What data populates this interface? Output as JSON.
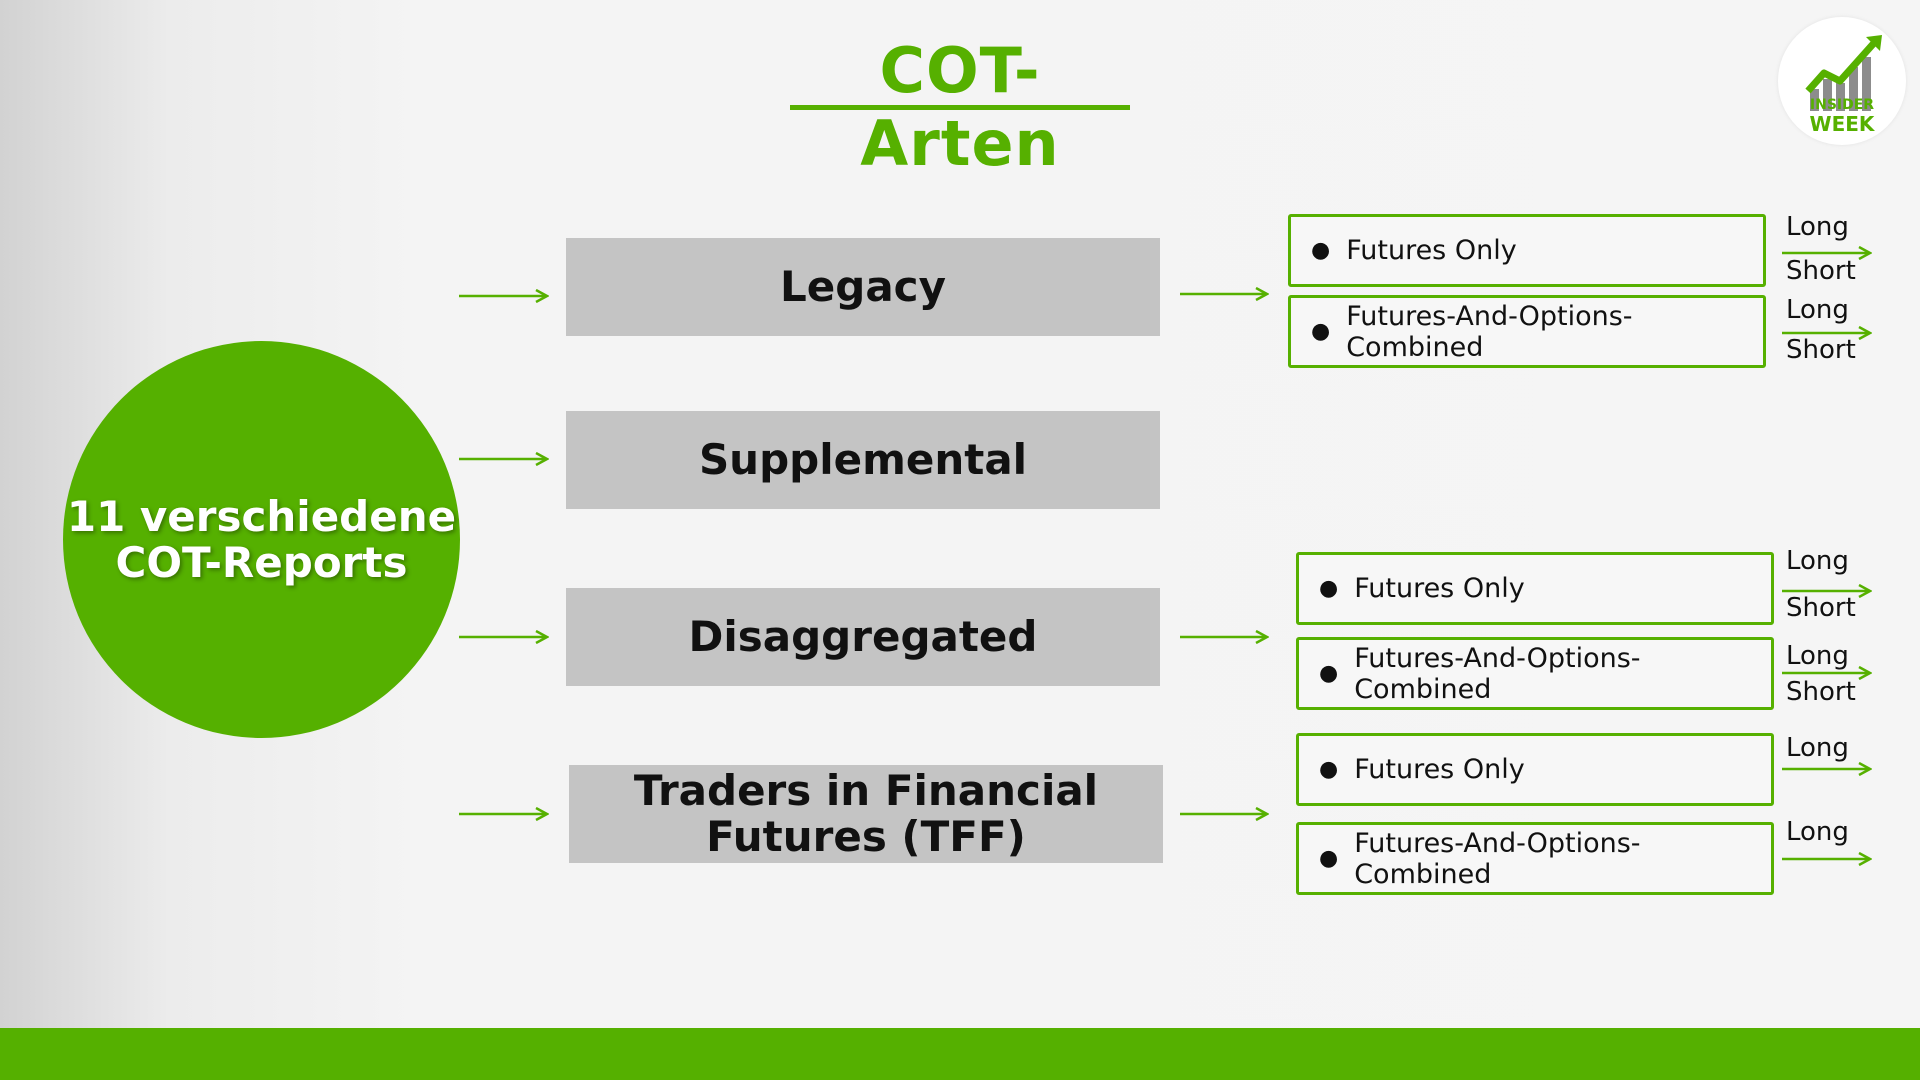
{
  "title": "COT-Arten",
  "logo": {
    "line1": "INSIDER",
    "line2": "WEEK",
    "icon": "rising-chart-icon"
  },
  "center": {
    "line1": "11 verschiedene",
    "line2": "COT-Reports"
  },
  "reports": [
    {
      "label": "Legacy"
    },
    {
      "label": "Supplemental"
    },
    {
      "label": "Disaggregated"
    },
    {
      "label_line1": "Traders in Financial",
      "label_line2": "Futures (TFF)"
    }
  ],
  "subtypes": {
    "legacy_futures": "Futures Only",
    "legacy_combined": "Futures-And-Options-Combined",
    "disagg_futures": "Futures Only",
    "disagg_combined": "Futures-And-Options-Combined",
    "tff_futures": "Futures Only",
    "tff_combined": "Futures-And-Options-Combined"
  },
  "positions": {
    "long": "Long",
    "short": "Short"
  },
  "colors": {
    "accent": "#56b000",
    "box_gray": "#c4c4c4"
  }
}
